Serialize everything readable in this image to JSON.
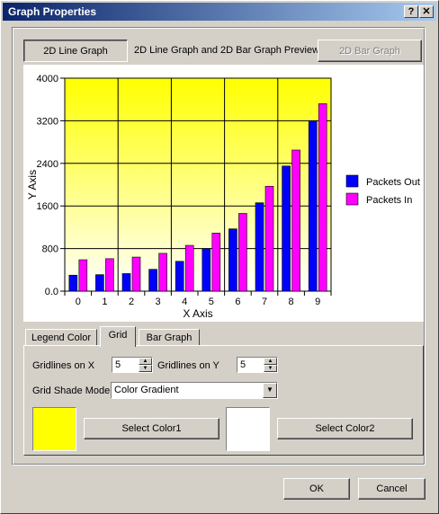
{
  "window": {
    "title": "Graph Properties",
    "help_glyph": "?",
    "close_glyph": "✕"
  },
  "toolbar": {
    "line_graph_label": "2D Line Graph",
    "preview_label": "2D Line Graph and 2D Bar Graph Preview",
    "bar_graph_label": "2D Bar Graph"
  },
  "chart_data": {
    "type": "bar",
    "xlabel": "X Axis",
    "ylabel": "Y Axis",
    "categories": [
      "0",
      "1",
      "2",
      "3",
      "4",
      "5",
      "6",
      "7",
      "8",
      "9"
    ],
    "yticks": [
      "0.0",
      "800",
      "1600",
      "2400",
      "3200",
      "4000"
    ],
    "ylim": [
      0,
      4000
    ],
    "grid": true,
    "legend_position": "right",
    "background_gradient": [
      "#ffff00",
      "#ffffff"
    ],
    "series": [
      {
        "name": "Packets Out",
        "color": "#0000ff",
        "values": [
          300,
          310,
          330,
          410,
          560,
          800,
          1170,
          1660,
          2350,
          3200
        ]
      },
      {
        "name": "Packets In",
        "color": "#ff00ff",
        "values": [
          590,
          610,
          640,
          710,
          860,
          1090,
          1460,
          1970,
          2650,
          3520
        ]
      }
    ]
  },
  "tabs": [
    {
      "label": "Legend Color"
    },
    {
      "label": "Grid"
    },
    {
      "label": "Bar Graph"
    }
  ],
  "grid_tab": {
    "gridlines_x_label": "Gridlines on X",
    "gridlines_x_value": "5",
    "gridlines_y_label": "Gridlines on Y",
    "gridlines_y_value": "5",
    "shade_mode_label": "Grid Shade Mode",
    "shade_mode_value": "Color Gradient",
    "color1": "#ffff00",
    "color2": "#ffffff",
    "select_color1_label": "Select Color1",
    "select_color2_label": "Select Color2"
  },
  "footer": {
    "ok_label": "OK",
    "cancel_label": "Cancel"
  }
}
